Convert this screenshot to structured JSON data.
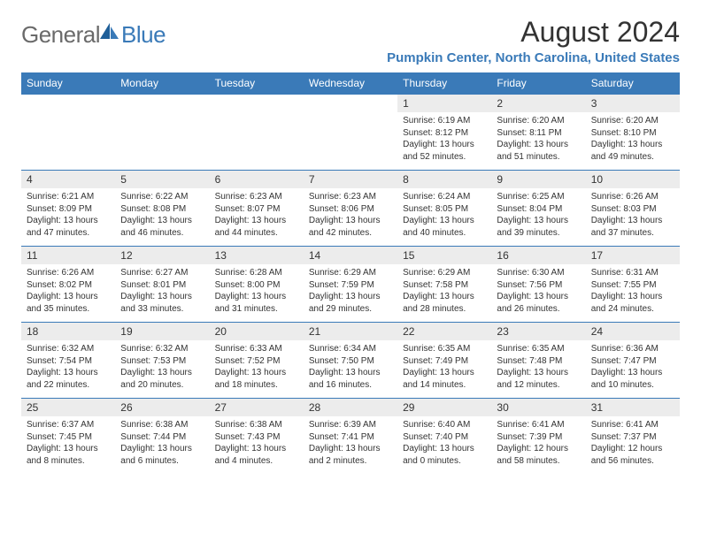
{
  "logo": {
    "text1": "General",
    "text2": "Blue"
  },
  "title": "August 2024",
  "location": "Pumpkin Center, North Carolina, United States",
  "colors": {
    "accent": "#3a7ab8",
    "row_alt": "#ececec",
    "text": "#333333",
    "bg": "#ffffff"
  },
  "weekdays": [
    "Sunday",
    "Monday",
    "Tuesday",
    "Wednesday",
    "Thursday",
    "Friday",
    "Saturday"
  ],
  "weeks": [
    [
      null,
      null,
      null,
      null,
      {
        "n": "1",
        "sr": "Sunrise: 6:19 AM",
        "ss": "Sunset: 8:12 PM",
        "dl": "Daylight: 13 hours and 52 minutes."
      },
      {
        "n": "2",
        "sr": "Sunrise: 6:20 AM",
        "ss": "Sunset: 8:11 PM",
        "dl": "Daylight: 13 hours and 51 minutes."
      },
      {
        "n": "3",
        "sr": "Sunrise: 6:20 AM",
        "ss": "Sunset: 8:10 PM",
        "dl": "Daylight: 13 hours and 49 minutes."
      }
    ],
    [
      {
        "n": "4",
        "sr": "Sunrise: 6:21 AM",
        "ss": "Sunset: 8:09 PM",
        "dl": "Daylight: 13 hours and 47 minutes."
      },
      {
        "n": "5",
        "sr": "Sunrise: 6:22 AM",
        "ss": "Sunset: 8:08 PM",
        "dl": "Daylight: 13 hours and 46 minutes."
      },
      {
        "n": "6",
        "sr": "Sunrise: 6:23 AM",
        "ss": "Sunset: 8:07 PM",
        "dl": "Daylight: 13 hours and 44 minutes."
      },
      {
        "n": "7",
        "sr": "Sunrise: 6:23 AM",
        "ss": "Sunset: 8:06 PM",
        "dl": "Daylight: 13 hours and 42 minutes."
      },
      {
        "n": "8",
        "sr": "Sunrise: 6:24 AM",
        "ss": "Sunset: 8:05 PM",
        "dl": "Daylight: 13 hours and 40 minutes."
      },
      {
        "n": "9",
        "sr": "Sunrise: 6:25 AM",
        "ss": "Sunset: 8:04 PM",
        "dl": "Daylight: 13 hours and 39 minutes."
      },
      {
        "n": "10",
        "sr": "Sunrise: 6:26 AM",
        "ss": "Sunset: 8:03 PM",
        "dl": "Daylight: 13 hours and 37 minutes."
      }
    ],
    [
      {
        "n": "11",
        "sr": "Sunrise: 6:26 AM",
        "ss": "Sunset: 8:02 PM",
        "dl": "Daylight: 13 hours and 35 minutes."
      },
      {
        "n": "12",
        "sr": "Sunrise: 6:27 AM",
        "ss": "Sunset: 8:01 PM",
        "dl": "Daylight: 13 hours and 33 minutes."
      },
      {
        "n": "13",
        "sr": "Sunrise: 6:28 AM",
        "ss": "Sunset: 8:00 PM",
        "dl": "Daylight: 13 hours and 31 minutes."
      },
      {
        "n": "14",
        "sr": "Sunrise: 6:29 AM",
        "ss": "Sunset: 7:59 PM",
        "dl": "Daylight: 13 hours and 29 minutes."
      },
      {
        "n": "15",
        "sr": "Sunrise: 6:29 AM",
        "ss": "Sunset: 7:58 PM",
        "dl": "Daylight: 13 hours and 28 minutes."
      },
      {
        "n": "16",
        "sr": "Sunrise: 6:30 AM",
        "ss": "Sunset: 7:56 PM",
        "dl": "Daylight: 13 hours and 26 minutes."
      },
      {
        "n": "17",
        "sr": "Sunrise: 6:31 AM",
        "ss": "Sunset: 7:55 PM",
        "dl": "Daylight: 13 hours and 24 minutes."
      }
    ],
    [
      {
        "n": "18",
        "sr": "Sunrise: 6:32 AM",
        "ss": "Sunset: 7:54 PM",
        "dl": "Daylight: 13 hours and 22 minutes."
      },
      {
        "n": "19",
        "sr": "Sunrise: 6:32 AM",
        "ss": "Sunset: 7:53 PM",
        "dl": "Daylight: 13 hours and 20 minutes."
      },
      {
        "n": "20",
        "sr": "Sunrise: 6:33 AM",
        "ss": "Sunset: 7:52 PM",
        "dl": "Daylight: 13 hours and 18 minutes."
      },
      {
        "n": "21",
        "sr": "Sunrise: 6:34 AM",
        "ss": "Sunset: 7:50 PM",
        "dl": "Daylight: 13 hours and 16 minutes."
      },
      {
        "n": "22",
        "sr": "Sunrise: 6:35 AM",
        "ss": "Sunset: 7:49 PM",
        "dl": "Daylight: 13 hours and 14 minutes."
      },
      {
        "n": "23",
        "sr": "Sunrise: 6:35 AM",
        "ss": "Sunset: 7:48 PM",
        "dl": "Daylight: 13 hours and 12 minutes."
      },
      {
        "n": "24",
        "sr": "Sunrise: 6:36 AM",
        "ss": "Sunset: 7:47 PM",
        "dl": "Daylight: 13 hours and 10 minutes."
      }
    ],
    [
      {
        "n": "25",
        "sr": "Sunrise: 6:37 AM",
        "ss": "Sunset: 7:45 PM",
        "dl": "Daylight: 13 hours and 8 minutes."
      },
      {
        "n": "26",
        "sr": "Sunrise: 6:38 AM",
        "ss": "Sunset: 7:44 PM",
        "dl": "Daylight: 13 hours and 6 minutes."
      },
      {
        "n": "27",
        "sr": "Sunrise: 6:38 AM",
        "ss": "Sunset: 7:43 PM",
        "dl": "Daylight: 13 hours and 4 minutes."
      },
      {
        "n": "28",
        "sr": "Sunrise: 6:39 AM",
        "ss": "Sunset: 7:41 PM",
        "dl": "Daylight: 13 hours and 2 minutes."
      },
      {
        "n": "29",
        "sr": "Sunrise: 6:40 AM",
        "ss": "Sunset: 7:40 PM",
        "dl": "Daylight: 13 hours and 0 minutes."
      },
      {
        "n": "30",
        "sr": "Sunrise: 6:41 AM",
        "ss": "Sunset: 7:39 PM",
        "dl": "Daylight: 12 hours and 58 minutes."
      },
      {
        "n": "31",
        "sr": "Sunrise: 6:41 AM",
        "ss": "Sunset: 7:37 PM",
        "dl": "Daylight: 12 hours and 56 minutes."
      }
    ]
  ]
}
